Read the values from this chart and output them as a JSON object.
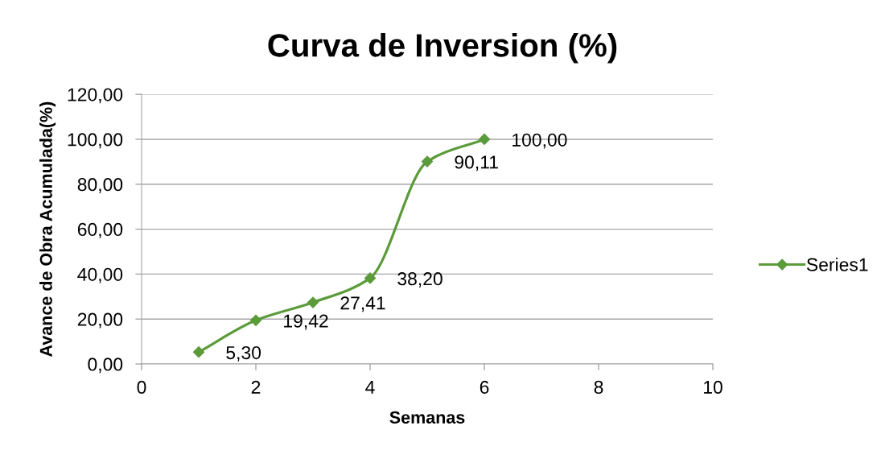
{
  "chart_data": {
    "type": "line",
    "title": "Curva de Inversion (%)",
    "xlabel": "Semanas",
    "ylabel": "Avance de Obra Acumulada(%)",
    "x": [
      1,
      2,
      3,
      4,
      5,
      6
    ],
    "series": [
      {
        "name": "Series1",
        "color": "#5b9b3a",
        "values": [
          5.3,
          19.42,
          27.41,
          38.2,
          90.11,
          100.0
        ],
        "value_labels": [
          "5,30",
          "19,42",
          "27,41",
          "38,20",
          "90,11",
          "100,00"
        ]
      }
    ],
    "xlim": [
      0,
      10
    ],
    "xticks": [
      0,
      2,
      4,
      6,
      8,
      10
    ],
    "ylim": [
      0,
      120
    ],
    "yticks": [
      {
        "value": 0,
        "label": "0,00"
      },
      {
        "value": 20,
        "label": "20,00"
      },
      {
        "value": 40,
        "label": "40,00"
      },
      {
        "value": 60,
        "label": "60,00"
      },
      {
        "value": 80,
        "label": "80,00"
      },
      {
        "value": 100,
        "label": "100,00"
      },
      {
        "value": 120,
        "label": "120,00"
      }
    ],
    "grid": "y",
    "legend": "right",
    "marker": "diamond",
    "line_style": "solid"
  }
}
